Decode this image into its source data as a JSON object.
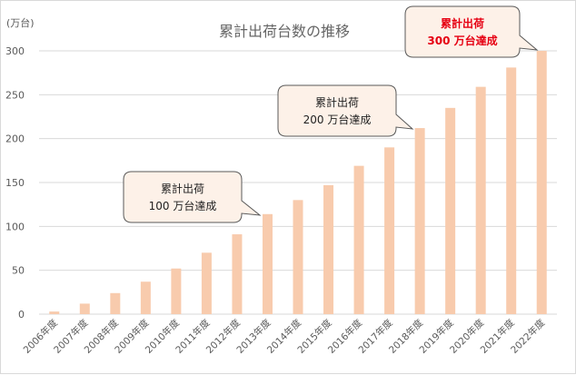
{
  "chart_data": {
    "type": "bar",
    "title": "累計出荷台数の推移",
    "unit_label": "(万台)",
    "categories": [
      "2006年度",
      "2007年度",
      "2008年度",
      "2009年度",
      "2010年度",
      "2011年度",
      "2012年度",
      "2013年度",
      "2014年度",
      "2015年度",
      "2016年度",
      "2017年度",
      "2018年度",
      "2019年度",
      "2020年度",
      "2021年度",
      "2022年度"
    ],
    "values": [
      3,
      12,
      24,
      37,
      52,
      70,
      91,
      114,
      130,
      147,
      169,
      190,
      212,
      235,
      259,
      281,
      300
    ],
    "ylim": [
      0,
      300
    ],
    "yticks": [
      "0",
      "50",
      "100",
      "150",
      "200",
      "250",
      "300"
    ],
    "grid": true,
    "bar_color": "#f8cbad",
    "annotations": [
      {
        "line1": "累計出荷",
        "line2": "100 万台達成",
        "highlight": false
      },
      {
        "line1": "累計出荷",
        "line2": "200 万台達成",
        "highlight": false
      },
      {
        "line1": "累計出荷",
        "line2": "300 万台達成",
        "highlight": true
      }
    ],
    "highlight_color": "#e60012"
  }
}
